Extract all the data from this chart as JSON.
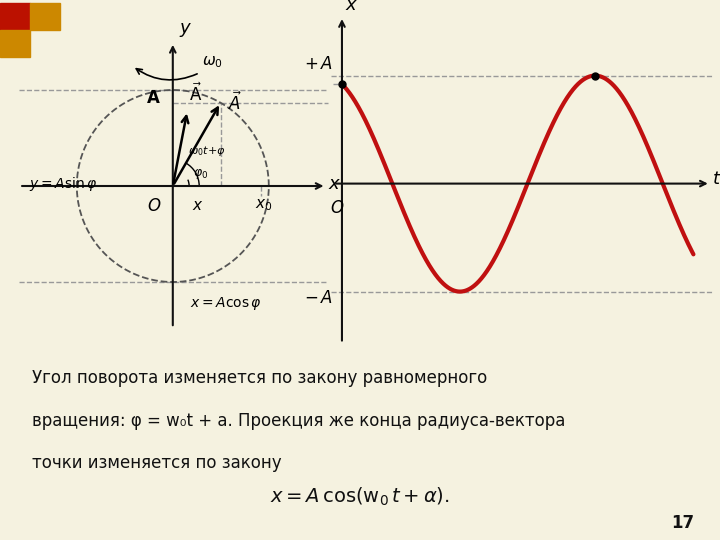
{
  "bg_top": "#f0ead8",
  "bg_bottom": "#f5f2e0",
  "wave_color": "#c01010",
  "wave_lw": 3.0,
  "axis_color": "#111111",
  "dash_color": "#999999",
  "text_color": "#111111",
  "phi0": 0.4,
  "phi1": 1.05,
  "phi_A_hat": 1.38,
  "deco_red": "#bb1100",
  "deco_gold": "#cc8800",
  "page_num": "17",
  "body_line1": "Угол поворота изменяется по закону равномерного",
  "body_line2": "вращения: φ = w₀t + a. Проекция же конца радиуса-вектора",
  "body_line3": "точки изменяется по закону"
}
